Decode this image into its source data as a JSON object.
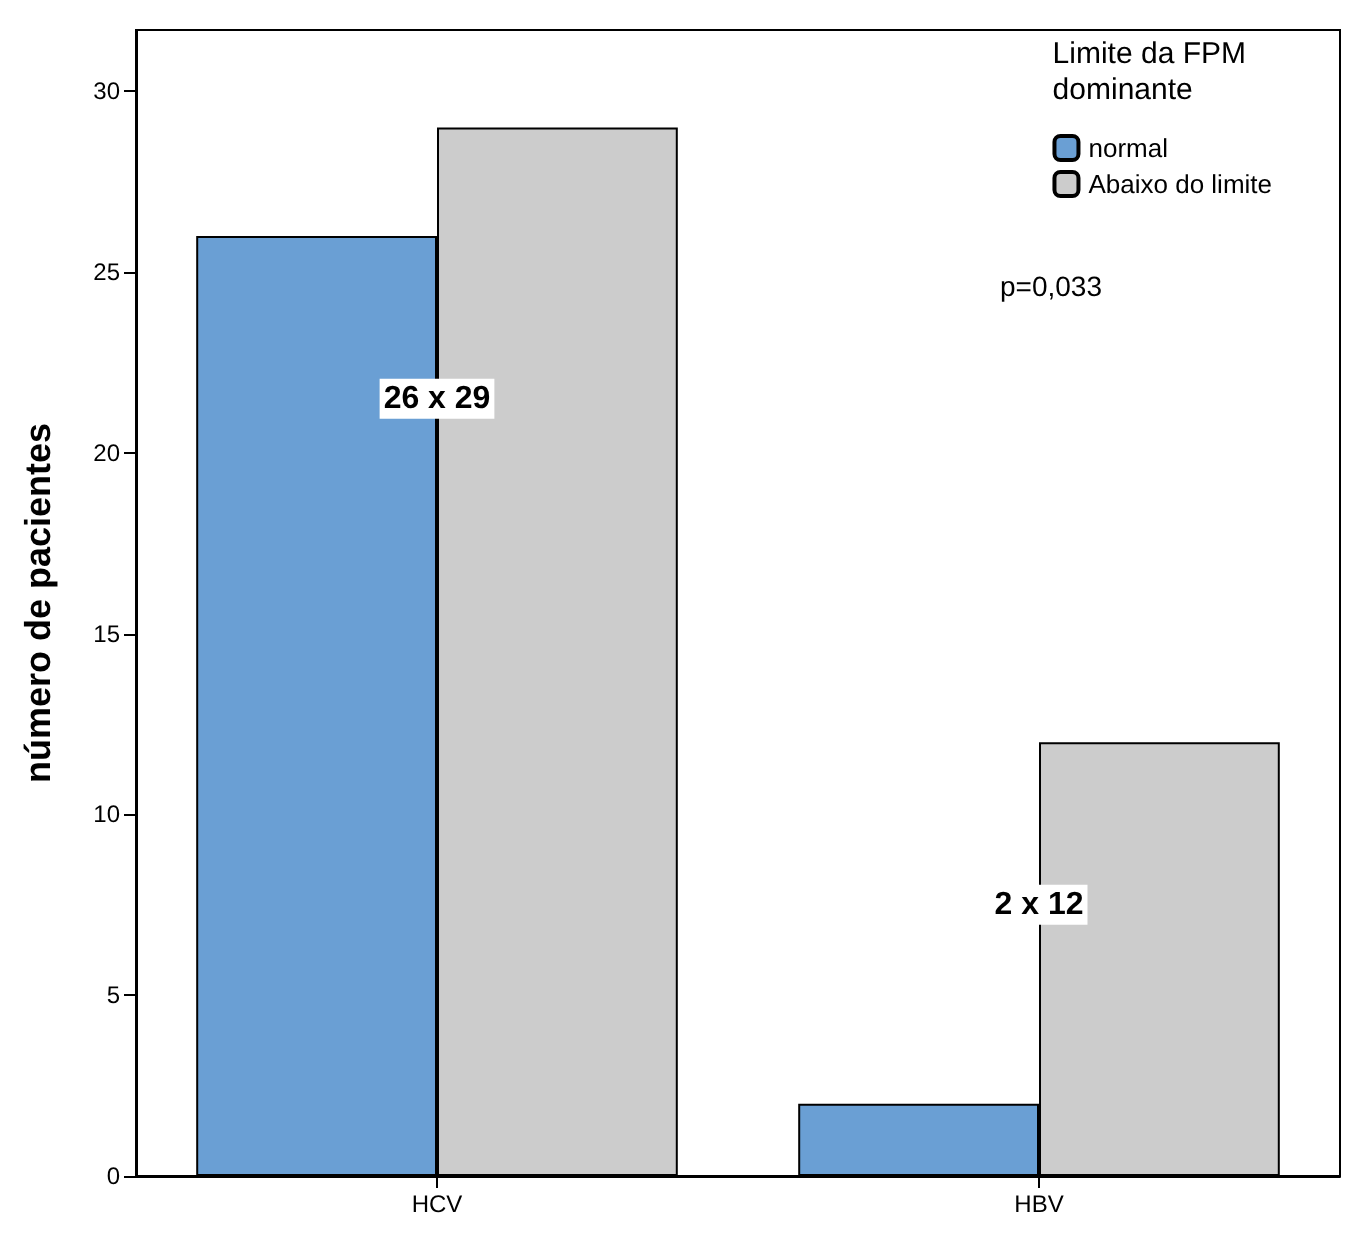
{
  "chart_data": {
    "type": "bar",
    "ylabel": "número de pacientes",
    "legend_title": "Limite da FPM dominante",
    "categories": [
      "HCV",
      "HBV"
    ],
    "series": [
      {
        "name": "normal",
        "color": "#6a9fd4",
        "values": [
          26,
          2
        ]
      },
      {
        "name": "Abaixo do limite",
        "color": "#cccccc",
        "values": [
          29,
          12
        ]
      }
    ],
    "ylim": [
      0,
      31.7
    ],
    "yticks": [
      0,
      5,
      10,
      15,
      20,
      25,
      30
    ],
    "grid": false,
    "legend": "top right",
    "annotations": [
      {
        "text": "26 x 29",
        "x": "HCV",
        "y": 21.5
      },
      {
        "text": "2 x 12",
        "x": "HBV",
        "y": 7.5
      },
      "p=0,033"
    ]
  }
}
